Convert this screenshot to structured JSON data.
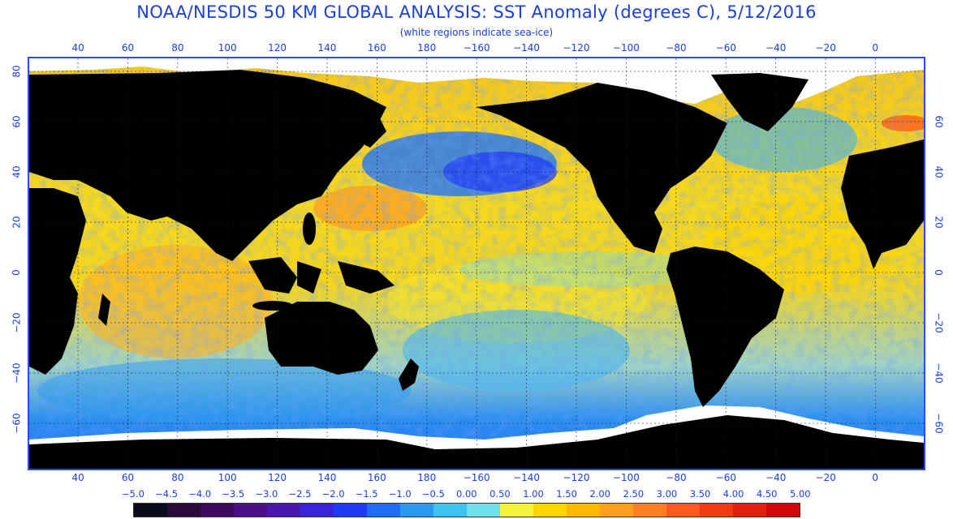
{
  "header": {
    "title": "NOAA/NESDIS 50 KM GLOBAL ANALYSIS: SST Anomaly (degrees C), 5/12/2016",
    "subtitle": "(white regions indicate sea-ice)"
  },
  "map": {
    "longitude_labels": [
      "40",
      "60",
      "80",
      "100",
      "120",
      "140",
      "160",
      "180",
      "−160",
      "−140",
      "−120",
      "−100",
      "−80",
      "−60",
      "−40",
      "−20",
      "0"
    ],
    "latitude_labels": [
      "80",
      "60",
      "40",
      "20",
      "0",
      "−20",
      "−40",
      "−60"
    ],
    "latitude_labels_right": [
      "60",
      "40",
      "20",
      "0",
      "−20",
      "−40",
      "−60"
    ],
    "colors": {
      "land": "#000000",
      "sea_ice": "#ffffff",
      "frame": "#2a4cff"
    }
  },
  "legend": {
    "labels": [
      "−5.0",
      "−4.5",
      "−4.0",
      "−3.5",
      "−3.0",
      "−2.5",
      "−2.0",
      "−1.5",
      "−1.0",
      "−0.5",
      "0.00",
      "0.50",
      "1.00",
      "1.50",
      "2.00",
      "2.50",
      "3.00",
      "3.50",
      "4.00",
      "4.50",
      "5.00"
    ],
    "colors": [
      "#0b0b1e",
      "#2a0a3a",
      "#3e0a5e",
      "#4a0e86",
      "#4a16b0",
      "#3a24d8",
      "#1f3cf5",
      "#1f6cf5",
      "#2a9af0",
      "#3bc4f0",
      "#6ee0f0",
      "#f6f23a",
      "#ffd400",
      "#ffb800",
      "#ff9e1e",
      "#ff7e22",
      "#ff5a1e",
      "#f03a10",
      "#e0200a",
      "#d00a08"
    ]
  },
  "chart_data": {
    "type": "heatmap",
    "title": "NOAA/NESDIS 50 KM GLOBAL ANALYSIS: SST Anomaly (degrees C), 5/12/2016",
    "subtitle": "(white regions indicate sea-ice)",
    "colorbar_range": [
      -5.0,
      5.0
    ],
    "colorbar_step": 0.5,
    "x_ticks": [
      40,
      60,
      80,
      100,
      120,
      140,
      160,
      180,
      -160,
      -140,
      -120,
      -100,
      -80,
      -60,
      -40,
      -20,
      0
    ],
    "y_ticks": [
      80,
      60,
      40,
      20,
      0,
      -20,
      -40,
      -60
    ]
  }
}
